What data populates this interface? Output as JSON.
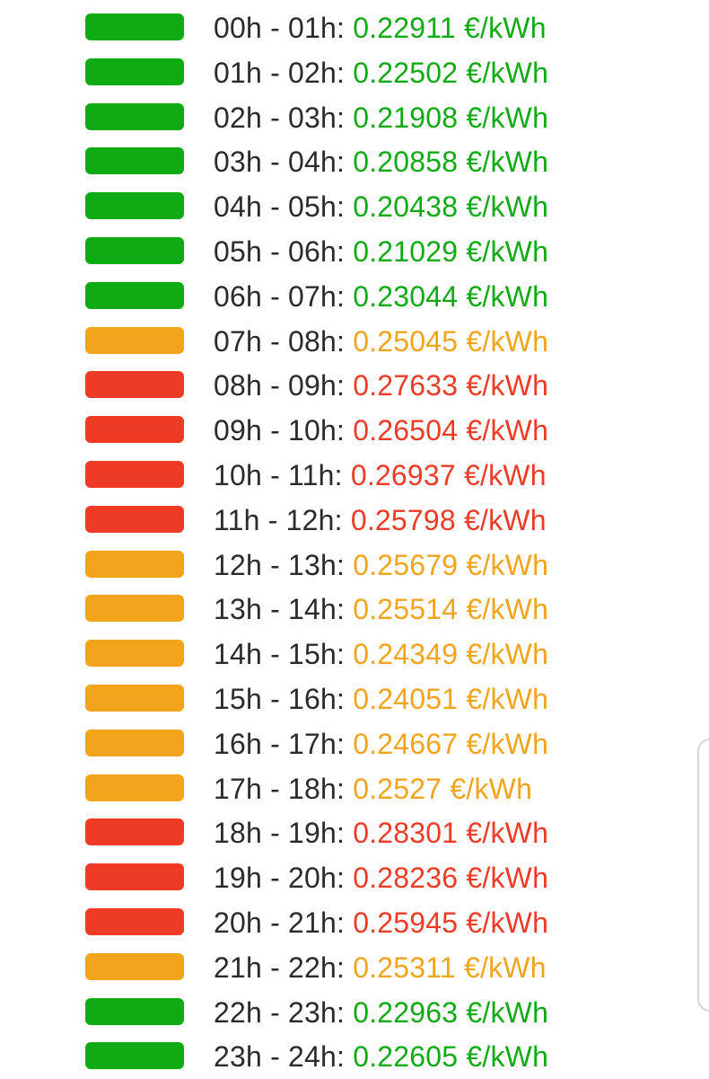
{
  "unit": "€/kWh",
  "levels": {
    "low": "#10ab14",
    "mid": "#f2a41c",
    "high": "#ee3b26"
  },
  "rows": [
    {
      "hours": "00h - 01h",
      "price": "0.22911",
      "level": "low"
    },
    {
      "hours": "01h - 02h",
      "price": "0.22502",
      "level": "low"
    },
    {
      "hours": "02h - 03h",
      "price": "0.21908",
      "level": "low"
    },
    {
      "hours": "03h - 04h",
      "price": "0.20858",
      "level": "low"
    },
    {
      "hours": "04h - 05h",
      "price": "0.20438",
      "level": "low"
    },
    {
      "hours": "05h - 06h",
      "price": "0.21029",
      "level": "low"
    },
    {
      "hours": "06h - 07h",
      "price": "0.23044",
      "level": "low"
    },
    {
      "hours": "07h - 08h",
      "price": "0.25045",
      "level": "mid"
    },
    {
      "hours": "08h - 09h",
      "price": "0.27633",
      "level": "high"
    },
    {
      "hours": "09h - 10h",
      "price": "0.26504",
      "level": "high"
    },
    {
      "hours": "10h - 11h",
      "price": "0.26937",
      "level": "high"
    },
    {
      "hours": "11h - 12h",
      "price": "0.25798",
      "level": "high"
    },
    {
      "hours": "12h - 13h",
      "price": "0.25679",
      "level": "mid"
    },
    {
      "hours": "13h - 14h",
      "price": "0.25514",
      "level": "mid"
    },
    {
      "hours": "14h - 15h",
      "price": "0.24349",
      "level": "mid"
    },
    {
      "hours": "15h - 16h",
      "price": "0.24051",
      "level": "mid"
    },
    {
      "hours": "16h - 17h",
      "price": "0.24667",
      "level": "mid"
    },
    {
      "hours": "17h - 18h",
      "price": "0.2527",
      "level": "mid"
    },
    {
      "hours": "18h - 19h",
      "price": "0.28301",
      "level": "high"
    },
    {
      "hours": "19h - 20h",
      "price": "0.28236",
      "level": "high"
    },
    {
      "hours": "20h - 21h",
      "price": "0.25945",
      "level": "high"
    },
    {
      "hours": "21h - 22h",
      "price": "0.25311",
      "level": "mid"
    },
    {
      "hours": "22h - 23h",
      "price": "0.22963",
      "level": "low"
    },
    {
      "hours": "23h - 24h",
      "price": "0.22605",
      "level": "low"
    }
  ]
}
